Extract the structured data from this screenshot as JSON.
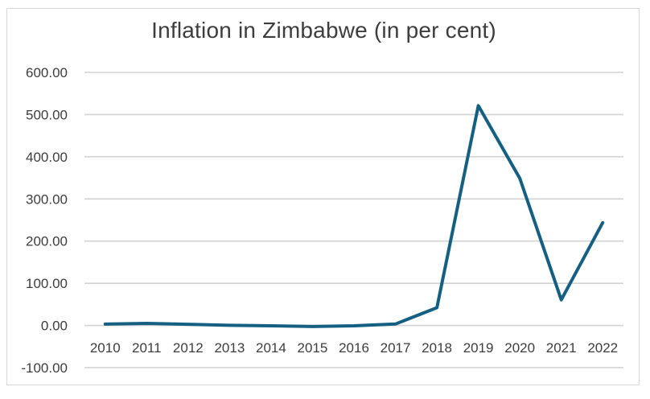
{
  "chart_data": {
    "type": "line",
    "title": "Inflation in Zimbabwe (in per cent)",
    "categories": [
      "2010",
      "2011",
      "2012",
      "2013",
      "2014",
      "2015",
      "2016",
      "2017",
      "2018",
      "2019",
      "2020",
      "2021",
      "2022"
    ],
    "values": [
      3.2,
      4.9,
      2.9,
      0.3,
      -0.8,
      -2.5,
      -0.9,
      3.4,
      42.1,
      521.1,
      348.6,
      60.7,
      243.8
    ],
    "xlabel": "",
    "ylabel": "",
    "ylim": [
      -100,
      600
    ],
    "yticks": [
      600,
      500,
      400,
      300,
      200,
      100,
      0,
      -100
    ],
    "ytick_labels": [
      "600.00",
      "500.00",
      "400.00",
      "300.00",
      "200.00",
      "100.00",
      "0.00",
      "-100.00"
    ],
    "grid": true,
    "legend": false,
    "colors": {
      "line": "#156082",
      "gridline": "#d2d2d2",
      "axis_text": "#3d3d3d",
      "title_text": "#3d3d3d",
      "frame_border": "#d8d8d8",
      "background": "#ffffff"
    }
  }
}
